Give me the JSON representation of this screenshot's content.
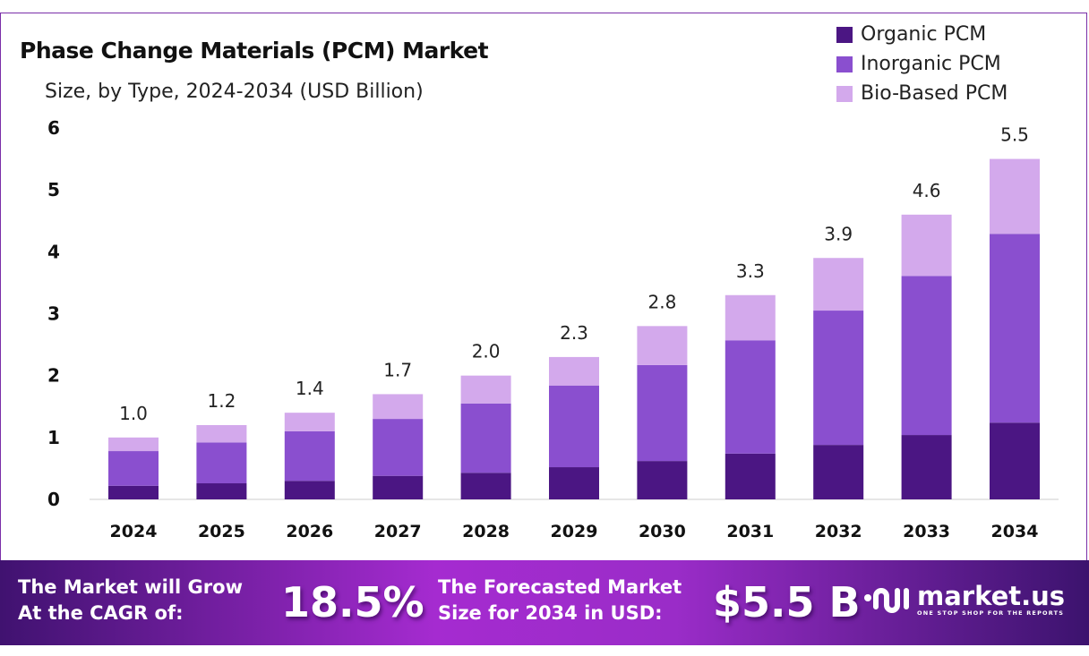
{
  "chart_data": {
    "type": "bar",
    "stacked": true,
    "title": "Phase Change Materials (PCM) Market",
    "subtitle": "Size, by Type, 2024-2034 (USD Billion)",
    "categories": [
      "2024",
      "2025",
      "2026",
      "2027",
      "2028",
      "2029",
      "2030",
      "2031",
      "2032",
      "2033",
      "2034"
    ],
    "series": [
      {
        "name": "Organic PCM",
        "color": "#4b1683",
        "values": [
          0.22,
          0.26,
          0.3,
          0.38,
          0.43,
          0.52,
          0.62,
          0.74,
          0.88,
          1.04,
          1.24
        ]
      },
      {
        "name": "Inorganic PCM",
        "color": "#8a4fcf",
        "values": [
          0.56,
          0.66,
          0.8,
          0.92,
          1.12,
          1.32,
          1.55,
          1.83,
          2.17,
          2.57,
          3.05
        ]
      },
      {
        "name": "Bio-Based PCM",
        "color": "#d3a9ec",
        "values": [
          0.22,
          0.28,
          0.3,
          0.4,
          0.45,
          0.46,
          0.63,
          0.73,
          0.85,
          0.99,
          1.21
        ]
      }
    ],
    "totals": [
      "1.0",
      "1.2",
      "1.4",
      "1.7",
      "2.0",
      "2.3",
      "2.8",
      "3.3",
      "3.9",
      "4.6",
      "5.5"
    ],
    "yticks": [
      "0",
      "1",
      "2",
      "3",
      "4",
      "5",
      "6"
    ],
    "ylim": [
      0,
      6
    ],
    "grid": false,
    "legend_position": "top-right"
  },
  "banner": {
    "cagr_label_line1": "The Market will Grow",
    "cagr_label_line2": "At the CAGR of:",
    "cagr_value": "18.5%",
    "forecast_label_line1": "The Forecasted Market",
    "forecast_label_line2": "Size for 2034 in USD:",
    "forecast_value": "$5.5 B",
    "logo_text": "market.us",
    "logo_tagline": "ONE STOP SHOP FOR THE REPORTS"
  }
}
